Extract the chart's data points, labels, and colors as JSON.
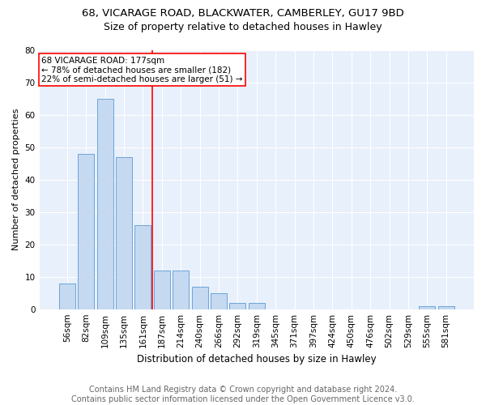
{
  "title1": "68, VICARAGE ROAD, BLACKWATER, CAMBERLEY, GU17 9BD",
  "title2": "Size of property relative to detached houses in Hawley",
  "xlabel": "Distribution of detached houses by size in Hawley",
  "ylabel": "Number of detached properties",
  "categories": [
    "56sqm",
    "82sqm",
    "109sqm",
    "135sqm",
    "161sqm",
    "187sqm",
    "214sqm",
    "240sqm",
    "266sqm",
    "292sqm",
    "319sqm",
    "345sqm",
    "371sqm",
    "397sqm",
    "424sqm",
    "450sqm",
    "476sqm",
    "502sqm",
    "529sqm",
    "555sqm",
    "581sqm"
  ],
  "values": [
    8,
    48,
    65,
    47,
    26,
    12,
    12,
    7,
    5,
    2,
    2,
    0,
    0,
    0,
    0,
    0,
    0,
    0,
    0,
    1,
    1
  ],
  "bar_color": "#c5d9f0",
  "bar_edge_color": "#5b9bd5",
  "annotation_lines": [
    "68 VICARAGE ROAD: 177sqm",
    "← 78% of detached houses are smaller (182)",
    "22% of semi-detached houses are larger (51) →"
  ],
  "ylim": [
    0,
    80
  ],
  "yticks": [
    0,
    10,
    20,
    30,
    40,
    50,
    60,
    70,
    80
  ],
  "footer": "Contains HM Land Registry data © Crown copyright and database right 2024.\nContains public sector information licensed under the Open Government Licence v3.0.",
  "background_color": "#e8f0fb",
  "grid_color": "#ffffff",
  "title1_fontsize": 9.5,
  "title2_fontsize": 9,
  "xlabel_fontsize": 8.5,
  "ylabel_fontsize": 8,
  "tick_fontsize": 7.5,
  "footer_fontsize": 7,
  "ann_fontsize": 7.5
}
